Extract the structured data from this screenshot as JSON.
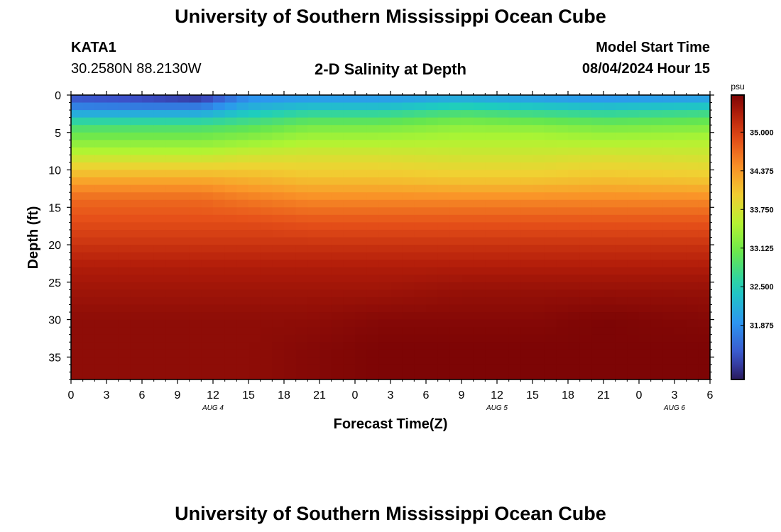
{
  "header": {
    "title": "University of Southern Mississippi Ocean Cube",
    "station_id": "KATA1",
    "coords": "30.2580N  88.2130W",
    "subtitle": "2-D Salinity at Depth",
    "start_label": "Model Start Time",
    "start_value": "08/04/2024 Hour 15"
  },
  "footer": {
    "title": "University of Southern Mississippi Ocean Cube"
  },
  "chart_data": {
    "type": "heatmap",
    "title": "2-D Salinity at Depth",
    "xlabel": "Forecast Time(Z)",
    "ylabel": "Depth (ft)",
    "x_range_hours": [
      0,
      54
    ],
    "x_tick_labels": [
      "0",
      "3",
      "6",
      "9",
      "12",
      "15",
      "18",
      "21",
      "0",
      "3",
      "6",
      "9",
      "12",
      "15",
      "18",
      "21",
      "0",
      "3",
      "6"
    ],
    "date_labels": [
      {
        "label": "AUG 4",
        "hour": 12
      },
      {
        "label": "AUG 5",
        "hour": 36
      },
      {
        "label": "AUG 6",
        "hour": 51
      }
    ],
    "y_range_ft": [
      0,
      38
    ],
    "y_ticks": [
      0,
      5,
      10,
      15,
      20,
      25,
      30,
      35
    ],
    "y_tick_labels": [
      "0",
      "5",
      "10",
      "15",
      "20",
      "25",
      "30",
      "35"
    ],
    "colorbar": {
      "unit": "psu",
      "min": 31.0,
      "max": 35.6,
      "ticks": [
        35.0,
        34.375,
        33.75,
        33.125,
        32.5,
        31.875
      ],
      "tick_labels": [
        "35.000",
        "34.375",
        "33.750",
        "33.125",
        "32.500",
        "31.875"
      ]
    },
    "profile_depths_ft": [
      0,
      1,
      2,
      3,
      4,
      5,
      6,
      7,
      8,
      9,
      10,
      11,
      12,
      14,
      17,
      20,
      23,
      26,
      30,
      34,
      38
    ],
    "profiles": [
      {
        "hour": 0,
        "salinity": [
          31.3,
          31.6,
          31.9,
          32.4,
          32.8,
          33.0,
          33.2,
          33.4,
          33.6,
          33.8,
          34.0,
          34.2,
          34.4,
          34.7,
          34.9,
          35.1,
          35.3,
          35.4,
          35.5,
          35.5,
          35.5
        ]
      },
      {
        "hour": 6,
        "salinity": [
          31.2,
          31.5,
          31.9,
          32.4,
          32.8,
          33.0,
          33.2,
          33.4,
          33.6,
          33.8,
          34.0,
          34.2,
          34.4,
          34.7,
          34.9,
          35.1,
          35.3,
          35.4,
          35.5,
          35.5,
          35.5
        ]
      },
      {
        "hour": 11,
        "salinity": [
          31.0,
          31.5,
          31.9,
          32.4,
          32.8,
          33.0,
          33.2,
          33.4,
          33.6,
          33.8,
          34.0,
          34.2,
          34.4,
          34.7,
          34.9,
          35.1,
          35.3,
          35.4,
          35.5,
          35.5,
          35.5
        ]
      },
      {
        "hour": 15,
        "salinity": [
          31.8,
          32.0,
          32.3,
          32.6,
          32.9,
          33.1,
          33.3,
          33.5,
          33.7,
          33.85,
          34.0,
          34.15,
          34.3,
          34.6,
          34.9,
          35.1,
          35.3,
          35.4,
          35.5,
          35.5,
          35.5
        ]
      },
      {
        "hour": 20,
        "salinity": [
          31.9,
          32.1,
          32.5,
          32.8,
          33.1,
          33.3,
          33.45,
          33.6,
          33.75,
          33.85,
          33.95,
          34.05,
          34.2,
          34.5,
          34.85,
          35.1,
          35.3,
          35.4,
          35.5,
          35.55,
          35.55
        ]
      },
      {
        "hour": 26,
        "salinity": [
          31.9,
          32.1,
          32.5,
          32.8,
          33.1,
          33.3,
          33.45,
          33.6,
          33.75,
          33.85,
          33.95,
          34.05,
          34.2,
          34.5,
          34.85,
          35.1,
          35.3,
          35.4,
          35.55,
          35.6,
          35.6
        ]
      },
      {
        "hour": 33,
        "salinity": [
          32.0,
          32.3,
          32.7,
          33.0,
          33.25,
          33.4,
          33.5,
          33.6,
          33.7,
          33.8,
          33.9,
          34.0,
          34.15,
          34.5,
          34.85,
          35.1,
          35.3,
          35.45,
          35.55,
          35.6,
          35.6
        ]
      },
      {
        "hour": 39,
        "salinity": [
          31.9,
          32.2,
          32.6,
          32.9,
          33.2,
          33.4,
          33.5,
          33.6,
          33.7,
          33.8,
          33.9,
          34.0,
          34.15,
          34.5,
          34.85,
          35.1,
          35.3,
          35.45,
          35.55,
          35.6,
          35.6
        ]
      },
      {
        "hour": 45,
        "salinity": [
          31.8,
          32.1,
          32.5,
          32.8,
          33.1,
          33.3,
          33.45,
          33.6,
          33.75,
          33.85,
          33.95,
          34.05,
          34.2,
          34.5,
          34.85,
          35.1,
          35.3,
          35.45,
          35.6,
          35.6,
          35.6
        ]
      },
      {
        "hour": 54,
        "salinity": [
          31.9,
          32.2,
          32.6,
          32.9,
          33.15,
          33.35,
          33.5,
          33.6,
          33.7,
          33.8,
          33.9,
          34.0,
          34.15,
          34.5,
          34.85,
          35.1,
          35.3,
          35.45,
          35.55,
          35.6,
          35.6
        ]
      }
    ]
  }
}
